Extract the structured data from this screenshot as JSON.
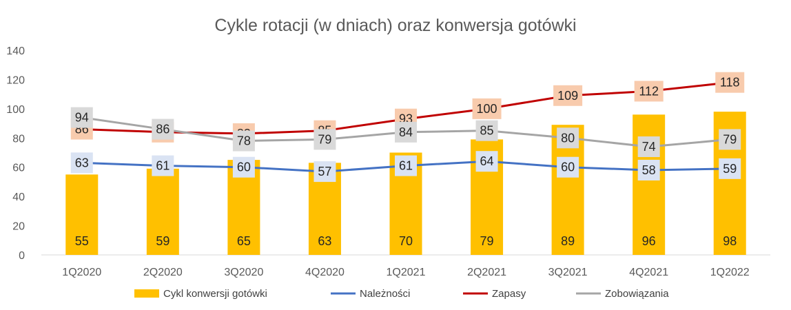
{
  "chart_data": {
    "type": "bar+line",
    "title": "Cykle rotacji (w dniach) oraz konwersja gotówki",
    "categories": [
      "1Q2020",
      "2Q2020",
      "3Q2020",
      "4Q2020",
      "1Q2021",
      "2Q2021",
      "3Q2021",
      "4Q2021",
      "1Q2022"
    ],
    "ylim": [
      0,
      140
    ],
    "yticks": [
      0,
      20,
      40,
      60,
      80,
      100,
      120,
      140
    ],
    "grid": false,
    "legend_position": "bottom",
    "series": [
      {
        "name": "Cykl konwersji gotówki",
        "kind": "bar",
        "color": "#FFC000",
        "label_bg": null,
        "values": [
          55,
          59,
          65,
          63,
          70,
          79,
          89,
          96,
          98
        ]
      },
      {
        "name": "Należności",
        "kind": "line",
        "color": "#4472C4",
        "label_bg": "#DAE3F3",
        "values": [
          63,
          61,
          60,
          57,
          61,
          64,
          60,
          58,
          59
        ]
      },
      {
        "name": "Zapasy",
        "kind": "line",
        "color": "#C00000",
        "label_bg": "#F8CBAD",
        "values": [
          86,
          84,
          83,
          85,
          93,
          100,
          109,
          112,
          118
        ]
      },
      {
        "name": "Zobowiązania",
        "kind": "line",
        "color": "#A5A5A5",
        "label_bg": "#D9D9D9",
        "values": [
          94,
          86,
          78,
          79,
          84,
          85,
          80,
          74,
          79
        ]
      }
    ]
  }
}
